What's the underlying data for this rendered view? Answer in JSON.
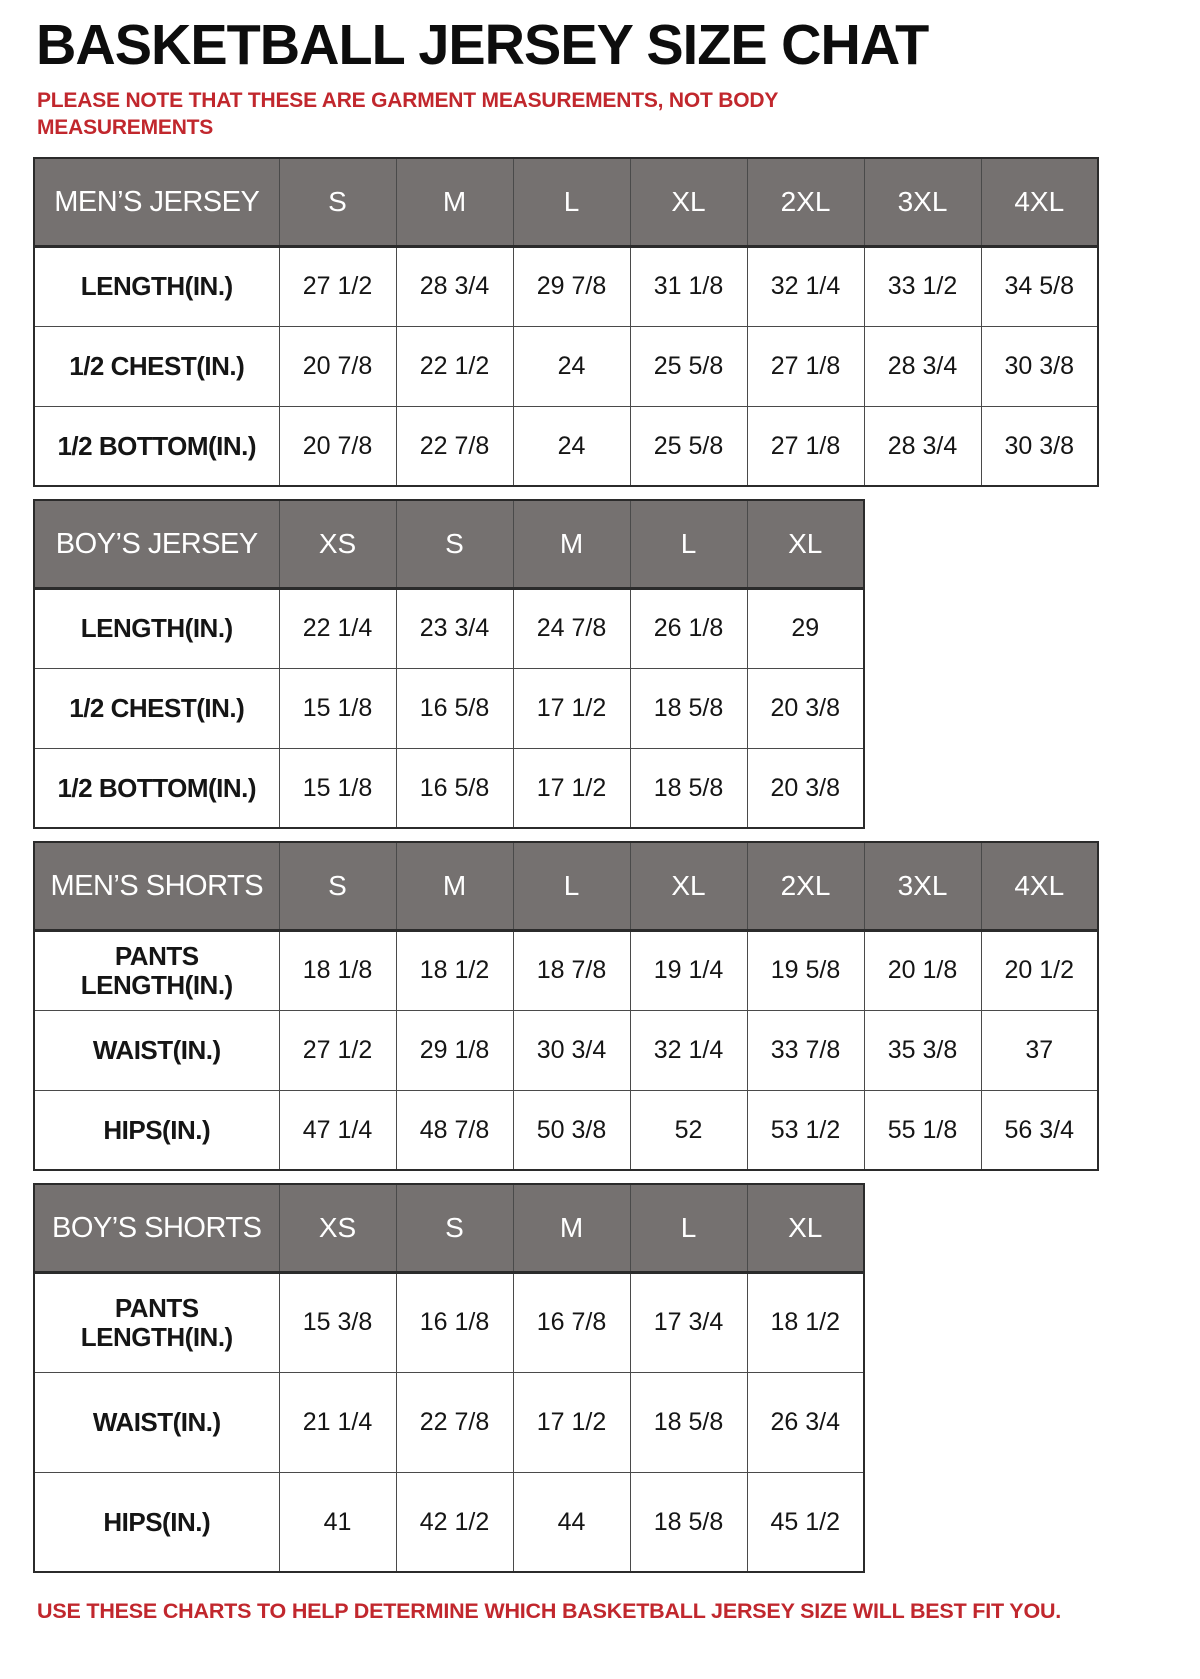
{
  "title": "BASKETBALL JERSEY SIZE CHAT",
  "note": "PLEASE NOTE THAT THESE ARE GARMENT MEASUREMENTS, NOT BODY MEASUREMENTS",
  "footer": "USE THESE CHARTS TO HELP DETERMINE WHICH BASKETBALL JERSEY SIZE WILL BEST FIT YOU.",
  "colors": {
    "accent_red": "#c1272d",
    "header_gray": "#757170",
    "header_text": "#ffffff",
    "border_dark": "#2b2b2b",
    "border_inner": "#4a4a4a"
  },
  "tables": [
    {
      "id": "mens-jersey",
      "name": "MEN’S JERSEY",
      "tall": false,
      "sizes": [
        "S",
        "M",
        "L",
        "XL",
        "2XL",
        "3XL",
        "4XL"
      ],
      "rows": [
        {
          "label": "LENGTH(IN.)",
          "values": [
            "27 1/2",
            "28 3/4",
            "29 7/8",
            "31 1/8",
            "32 1/4",
            "33 1/2",
            "34 5/8"
          ]
        },
        {
          "label": "1/2 CHEST(IN.)",
          "values": [
            "20 7/8",
            "22 1/2",
            "24",
            "25 5/8",
            "27 1/8",
            "28 3/4",
            "30 3/8"
          ]
        },
        {
          "label": "1/2 BOTTOM(IN.)",
          "values": [
            "20 7/8",
            "22 7/8",
            "24",
            "25 5/8",
            "27 1/8",
            "28 3/4",
            "30 3/8"
          ]
        }
      ]
    },
    {
      "id": "boys-jersey",
      "name": "BOY’S JERSEY",
      "tall": false,
      "sizes": [
        "XS",
        "S",
        "M",
        "L",
        "XL"
      ],
      "rows": [
        {
          "label": "LENGTH(IN.)",
          "values": [
            "22 1/4",
            "23 3/4",
            "24 7/8",
            "26 1/8",
            "29"
          ]
        },
        {
          "label": "1/2 CHEST(IN.)",
          "values": [
            "15 1/8",
            "16 5/8",
            "17 1/2",
            "18 5/8",
            "20 3/8"
          ]
        },
        {
          "label": "1/2 BOTTOM(IN.)",
          "values": [
            "15 1/8",
            "16 5/8",
            "17 1/2",
            "18 5/8",
            "20 3/8"
          ]
        }
      ]
    },
    {
      "id": "mens-shorts",
      "name": "MEN’S SHORTS",
      "tall": false,
      "sizes": [
        "S",
        "M",
        "L",
        "XL",
        "2XL",
        "3XL",
        "4XL"
      ],
      "rows": [
        {
          "label": "PANTS\nLENGTH(IN.)",
          "values": [
            "18 1/8",
            "18 1/2",
            "18 7/8",
            "19 1/4",
            "19 5/8",
            "20 1/8",
            "20 1/2"
          ]
        },
        {
          "label": "WAIST(IN.)",
          "values": [
            "27 1/2",
            "29 1/8",
            "30 3/4",
            "32 1/4",
            "33 7/8",
            "35 3/8",
            "37"
          ]
        },
        {
          "label": "HIPS(IN.)",
          "values": [
            "47 1/4",
            "48 7/8",
            "50 3/8",
            "52",
            "53 1/2",
            "55 1/8",
            "56 3/4"
          ]
        }
      ]
    },
    {
      "id": "boys-shorts",
      "name": "BOY’S SHORTS",
      "tall": true,
      "sizes": [
        "XS",
        "S",
        "M",
        "L",
        "XL"
      ],
      "rows": [
        {
          "label": "PANTS\nLENGTH(IN.)",
          "values": [
            "15 3/8",
            "16 1/8",
            "16 7/8",
            "17 3/4",
            "18 1/2"
          ]
        },
        {
          "label": "WAIST(IN.)",
          "values": [
            "21 1/4",
            "22 7/8",
            "17 1/2",
            "18 5/8",
            "26 3/4"
          ]
        },
        {
          "label": "HIPS(IN.)",
          "values": [
            "41",
            "42 1/2",
            "44",
            "18 5/8",
            "45 1/2"
          ]
        }
      ]
    }
  ]
}
